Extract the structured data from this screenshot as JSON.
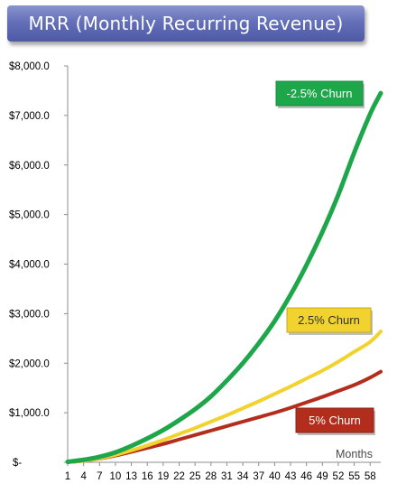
{
  "header": {
    "title": "MRR (Monthly Recurring Revenue)"
  },
  "chart_data": {
    "type": "line",
    "title": "MRR (Monthly Recurring Revenue)",
    "xlabel": "Months",
    "ylabel": "",
    "ylim": [
      0,
      8000
    ],
    "xlim": [
      1,
      60
    ],
    "y_ticks": [
      {
        "value": 0,
        "label": "$-"
      },
      {
        "value": 1000,
        "label": "$1,000.0"
      },
      {
        "value": 2000,
        "label": "$2,000.0"
      },
      {
        "value": 3000,
        "label": "$3,000.0"
      },
      {
        "value": 4000,
        "label": "$4,000.0"
      },
      {
        "value": 5000,
        "label": "$5,000.0"
      },
      {
        "value": 6000,
        "label": "$6,000.0"
      },
      {
        "value": 7000,
        "label": "$7,000.0"
      },
      {
        "value": 8000,
        "label": "$8,000.0"
      }
    ],
    "x_ticks": [
      "1",
      "4",
      "7",
      "10",
      "13",
      "16",
      "19",
      "22",
      "25",
      "28",
      "31",
      "34",
      "37",
      "40",
      "43",
      "46",
      "49",
      "52",
      "55",
      "58"
    ],
    "x": [
      1,
      4,
      7,
      10,
      13,
      16,
      19,
      22,
      25,
      28,
      31,
      34,
      37,
      40,
      43,
      46,
      49,
      52,
      55,
      58,
      60
    ],
    "grid": false,
    "series": [
      {
        "name": "-2.5% Churn",
        "color": "#1ea64a",
        "values": [
          10,
          50,
          110,
          200,
          330,
          480,
          650,
          850,
          1070,
          1330,
          1650,
          2000,
          2400,
          2850,
          3380,
          3980,
          4650,
          5400,
          6250,
          7030,
          7450
        ]
      },
      {
        "name": "2.5% Churn",
        "color": "#f2d22e",
        "values": [
          5,
          30,
          80,
          150,
          240,
          340,
          450,
          570,
          690,
          820,
          950,
          1090,
          1230,
          1380,
          1530,
          1690,
          1850,
          2030,
          2230,
          2430,
          2640
        ]
      },
      {
        "name": "5% Churn",
        "color": "#b32d1c",
        "values": [
          5,
          30,
          75,
          135,
          210,
          290,
          370,
          460,
          550,
          640,
          730,
          820,
          910,
          1000,
          1100,
          1210,
          1320,
          1440,
          1560,
          1710,
          1830
        ]
      }
    ]
  }
}
